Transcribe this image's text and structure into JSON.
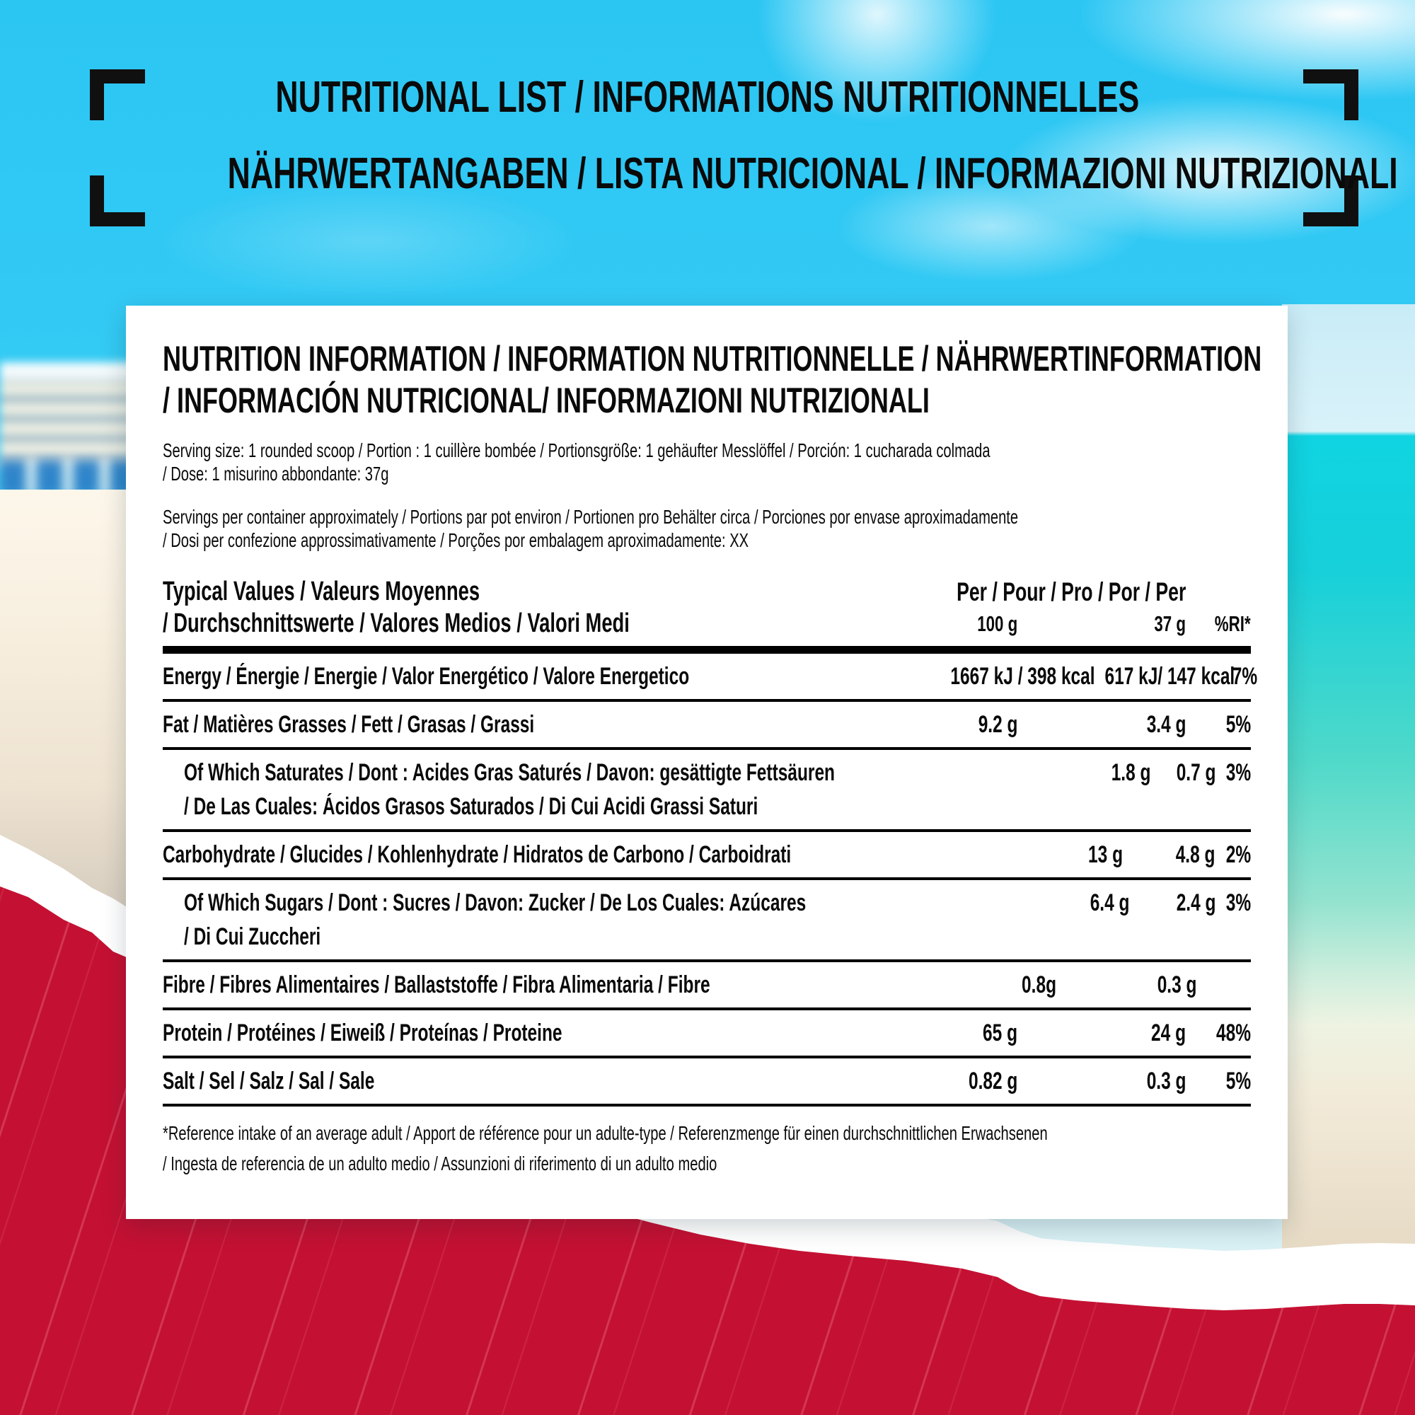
{
  "colors": {
    "sky": "#2cc6f3",
    "sea": "#10d4e2",
    "sand": "#f2e8d8",
    "paper_red": "#c41133",
    "card": "#ffffff",
    "ink": "#0a0a0a"
  },
  "page_title": {
    "line1": "NUTRITIONAL LIST / INFORMATIONS NUTRITIONNELLES",
    "line2": "NÄHRWERTANGABEN / LISTA NUTRICIONAL / INFORMAZIONI NUTRIZIONALI"
  },
  "card": {
    "heading_line1": "NUTRITION INFORMATION / INFORMATION NUTRITIONNELLE / NÄHRWERTINFORMATION",
    "heading_line2": "/ INFORMACIÓN NUTRICIONAL/ INFORMAZIONI NUTRIZIONALI",
    "serving_size_line1": "Serving size: 1 rounded scoop / Portion : 1 cuillère bombée / Portionsgröße: 1 gehäufter Messlöffel / Porción: 1 cucharada  colmada",
    "serving_size_line2": "/ Dose: 1 misurino abbondante: 37g",
    "servings_line1": "Servings per container approximately / Portions par pot environ / Portionen pro Behälter circa / Porciones por envase aproximadamente",
    "servings_line2": "/ Dosi per confezione approssimativamente / Porções por embalagem aproximadamente: XX",
    "footnote_line1": "*Reference intake of an average adult / Apport de référence pour un adulte-type / Referenzmenge für einen durchschnittlichen Erwachsenen",
    "footnote_line2": "/ Ingesta de referencia de un adulto medio / Assunzioni di riferimento di un adulto medio"
  },
  "table": {
    "header": {
      "left_line1": "Typical Values / Valeurs Moyennes",
      "left_line2": "/ Durchschnittswerte / Valores Medios / Valori Medi",
      "right_title": "Per / Pour / Pro / Por / Per",
      "col_100g": "100 g",
      "col_37g": "37 g",
      "col_ri": "%RI*"
    },
    "rows": [
      {
        "indent": false,
        "label_lines": [
          "Energy / Énergie / Energie / Valor Energético / Valore Energetico"
        ],
        "per_100g": "1667 kJ / 398 kcal",
        "per_37g": "617 kJ/ 147 kcal",
        "ri": "7%"
      },
      {
        "indent": false,
        "label_lines": [
          "Fat / Matières Grasses / Fett / Grasas / Grassi"
        ],
        "per_100g": "9.2 g",
        "per_37g": "3.4 g",
        "ri": "5%"
      },
      {
        "indent": true,
        "label_lines": [
          "Of Which Saturates / Dont : Acides Gras Saturés / Davon: gesättigte Fettsäuren",
          "/ De Las Cuales: Ácidos Grasos Saturados / Di Cui Acidi Grassi Saturi"
        ],
        "per_100g": "1.8 g",
        "per_37g": "0.7 g",
        "ri": "3%"
      },
      {
        "indent": false,
        "label_lines": [
          "Carbohydrate / Glucides / Kohlenhydrate / Hidratos de Carbono / Carboidrati"
        ],
        "per_100g": "13 g",
        "per_37g": "4.8 g",
        "ri": "2%"
      },
      {
        "indent": true,
        "label_lines": [
          "Of Which Sugars / Dont : Sucres / Davon: Zucker / De Los Cuales: Azúcares",
          "/ Di Cui Zuccheri"
        ],
        "per_100g": "6.4 g",
        "per_37g": "2.4 g",
        "ri": "3%"
      },
      {
        "indent": false,
        "label_lines": [
          "Fibre / Fibres Alimentaires / Ballaststoffe / Fibra Alimentaria / Fibre"
        ],
        "per_100g": "0.8g",
        "per_37g": "0.3 g",
        "ri": ""
      },
      {
        "indent": false,
        "label_lines": [
          "Protein / Protéines / Eiweiß / Proteínas / Proteine"
        ],
        "per_100g": "65 g",
        "per_37g": "24 g",
        "ri": "48%"
      },
      {
        "indent": false,
        "label_lines": [
          "Salt / Sel / Salz / Sal / Sale"
        ],
        "per_100g": "0.82 g",
        "per_37g": "0.3 g",
        "ri": "5%"
      }
    ]
  }
}
